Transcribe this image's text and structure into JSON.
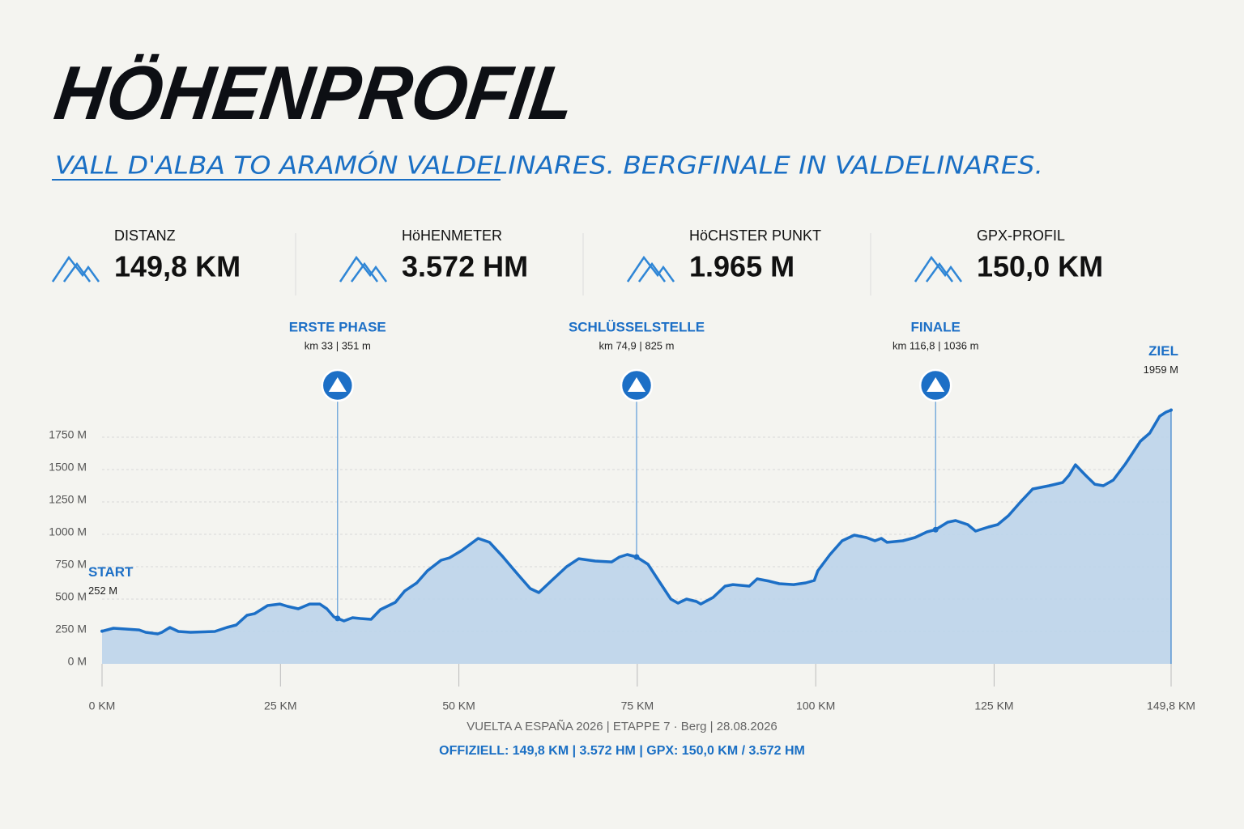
{
  "header": {
    "title": "HÖHENPROFIL",
    "subtitle": "VALL D'ALBA TO ARAMÓN VALDELINARES. BERGFINALE IN VALDELINARES."
  },
  "stats": [
    {
      "label": "DISTANZ",
      "value": "149,8 KM"
    },
    {
      "label": "HöHENMETER",
      "value": "3.572 HM"
    },
    {
      "label": "HöCHSTER PUNKT",
      "value": "1.965 M"
    },
    {
      "label": "GPX-PROFIL",
      "value": "150,0 KM"
    }
  ],
  "chart_data": {
    "type": "area",
    "color": "#1c6fc6",
    "fill": "#bcd4ea",
    "grid": true,
    "x": [
      0,
      1.6,
      3.3,
      5.2,
      6.1,
      7.8,
      8.4,
      9.5,
      10.7,
      12.4,
      15.8,
      17.5,
      18.8,
      20.3,
      21.4,
      23.2,
      24.9,
      26.0,
      27.5,
      29.1,
      30.5,
      31.5,
      32.5,
      33,
      33.9,
      35.1,
      36.2,
      37.7,
      39.0,
      41.1,
      42.4,
      44.1,
      45.6,
      47.5,
      48.7,
      50.4,
      52.7,
      54.3,
      56.1,
      58.3,
      60.0,
      61.2,
      62.9,
      65.1,
      66.8,
      69.1,
      71.4,
      72.5,
      73.6,
      74.9,
      76.5,
      78.2,
      79.7,
      80.7,
      81.9,
      83.3,
      83.9,
      85.6,
      87.3,
      88.4,
      90.7,
      91.8,
      93.5,
      94.9,
      96.9,
      98.6,
      99.8,
      100.3,
      102.0,
      103.7,
      105.4,
      107.1,
      108.3,
      109.2,
      110.0,
      112.2,
      113.9,
      115.6,
      116.8,
      118.5,
      119.6,
      121.3,
      122.4,
      124.2,
      125.5,
      127.0,
      128.7,
      130.4,
      132.7,
      134.6,
      135.5,
      136.4,
      137.8,
      139.1,
      140.3,
      141.7,
      143.4,
      145.5,
      146.8,
      148.2,
      149.1,
      149.8
    ],
    "values": [
      252,
      275,
      269,
      262,
      244,
      231,
      244,
      281,
      250,
      244,
      250,
      281,
      300,
      375,
      388,
      450,
      462,
      444,
      425,
      462,
      462,
      425,
      362,
      351,
      331,
      356,
      350,
      344,
      419,
      475,
      562,
      625,
      719,
      800,
      819,
      875,
      969,
      938,
      831,
      688,
      581,
      550,
      638,
      750,
      812,
      794,
      787,
      825,
      844,
      825,
      769,
      625,
      500,
      469,
      500,
      481,
      462,
      512,
      600,
      612,
      600,
      656,
      638,
      619,
      612,
      625,
      644,
      719,
      844,
      950,
      994,
      975,
      950,
      969,
      938,
      950,
      975,
      1019,
      1036,
      1094,
      1106,
      1075,
      1025,
      1056,
      1075,
      1144,
      1250,
      1350,
      1375,
      1400,
      1456,
      1537,
      1456,
      1387,
      1375,
      1419,
      1544,
      1719,
      1781,
      1912,
      1944,
      1959
    ],
    "xlim": [
      0,
      149.8
    ],
    "ylim": [
      0,
      2000
    ],
    "xticks": [
      {
        "value": 0,
        "label": "0 KM"
      },
      {
        "value": 25,
        "label": "25 KM"
      },
      {
        "value": 50,
        "label": "50 KM"
      },
      {
        "value": 75,
        "label": "75 KM"
      },
      {
        "value": 100,
        "label": "100 KM"
      },
      {
        "value": 125,
        "label": "125 KM"
      },
      {
        "value": 149.8,
        "label": "149,8 KM"
      }
    ],
    "yticks": [
      {
        "value": 0,
        "label": "0 M"
      },
      {
        "value": 250,
        "label": "250 M"
      },
      {
        "value": 500,
        "label": "500 M"
      },
      {
        "value": 750,
        "label": "750 M"
      },
      {
        "value": 1000,
        "label": "1000 M"
      },
      {
        "value": 1250,
        "label": "1250 M"
      },
      {
        "value": 1500,
        "label": "1500 M"
      },
      {
        "value": 1750,
        "label": "1750 M"
      }
    ],
    "annotations": [
      {
        "title": "START",
        "label": "252 M",
        "x": 0,
        "value": 252,
        "kind": "start"
      },
      {
        "title": "ERSTE PHASE",
        "label": "km 33 | 351 m",
        "x": 33,
        "value": 351,
        "kind": "marker"
      },
      {
        "title": "SCHLÜSSELSTELLE",
        "label": "km 74,9 | 825 m",
        "x": 74.9,
        "value": 825,
        "kind": "marker"
      },
      {
        "title": "FINALE",
        "label": "km 116,8 | 1036 m",
        "x": 116.8,
        "value": 1036,
        "kind": "marker"
      },
      {
        "title": "ZIEL",
        "label": "1959 M",
        "x": 149.8,
        "value": 1959,
        "kind": "end"
      }
    ]
  },
  "footer": {
    "line1": "VUELTA A ESPAÑA 2026 | ETAPPE 7 · Berg | 28.08.2026",
    "line2": "OFFIZIELL: 149,8 KM | 3.572 HM | GPX: 150,0 KM / 3.572 HM"
  }
}
